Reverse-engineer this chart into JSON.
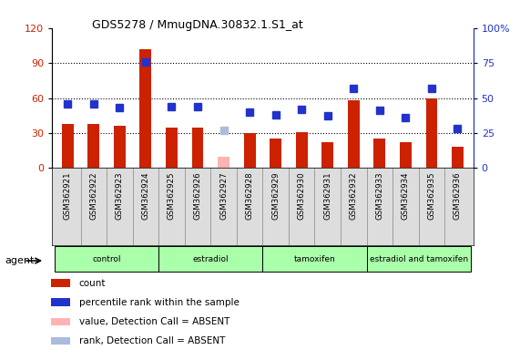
{
  "title": "GDS5278 / MmugDNA.30832.1.S1_at",
  "samples": [
    "GSM362921",
    "GSM362922",
    "GSM362923",
    "GSM362924",
    "GSM362925",
    "GSM362926",
    "GSM362927",
    "GSM362928",
    "GSM362929",
    "GSM362930",
    "GSM362931",
    "GSM362932",
    "GSM362933",
    "GSM362934",
    "GSM362935",
    "GSM362936"
  ],
  "count_values": [
    38,
    38,
    36,
    102,
    35,
    35,
    null,
    30,
    25,
    31,
    22,
    58,
    25,
    22,
    60,
    18
  ],
  "count_absent": [
    null,
    null,
    null,
    null,
    null,
    null,
    10,
    null,
    null,
    null,
    null,
    null,
    null,
    null,
    null,
    null
  ],
  "rank_values": [
    46,
    46,
    43,
    76,
    44,
    44,
    null,
    40,
    38,
    42,
    37,
    57,
    41,
    36,
    57,
    28
  ],
  "rank_absent": [
    null,
    null,
    null,
    null,
    null,
    null,
    27,
    null,
    null,
    null,
    null,
    null,
    null,
    null,
    null,
    null
  ],
  "ylim_left": [
    0,
    120
  ],
  "ylim_right": [
    0,
    100
  ],
  "yticks_left": [
    0,
    30,
    60,
    90,
    120
  ],
  "yticks_right": [
    0,
    25,
    50,
    75,
    100
  ],
  "ytick_labels_right": [
    "0",
    "25",
    "50",
    "75",
    "100%"
  ],
  "bar_color": "#cc2200",
  "bar_absent_color": "#ffb3b3",
  "rank_color": "#2233cc",
  "rank_absent_color": "#aabbdd",
  "group_labels": [
    "control",
    "estradiol",
    "tamoxifen",
    "estradiol and tamoxifen"
  ],
  "group_ranges": [
    [
      0,
      3
    ],
    [
      4,
      7
    ],
    [
      8,
      11
    ],
    [
      12,
      15
    ]
  ],
  "group_colors": [
    "#aaffaa",
    "#aaffaa",
    "#aaffaa",
    "#aaffaa"
  ],
  "legend_items": [
    {
      "label": "count",
      "color": "#cc2200"
    },
    {
      "label": "percentile rank within the sample",
      "color": "#2233cc"
    },
    {
      "label": "value, Detection Call = ABSENT",
      "color": "#ffb3b3"
    },
    {
      "label": "rank, Detection Call = ABSENT",
      "color": "#aabbdd"
    }
  ],
  "bar_width": 0.45,
  "marker_size": 6
}
